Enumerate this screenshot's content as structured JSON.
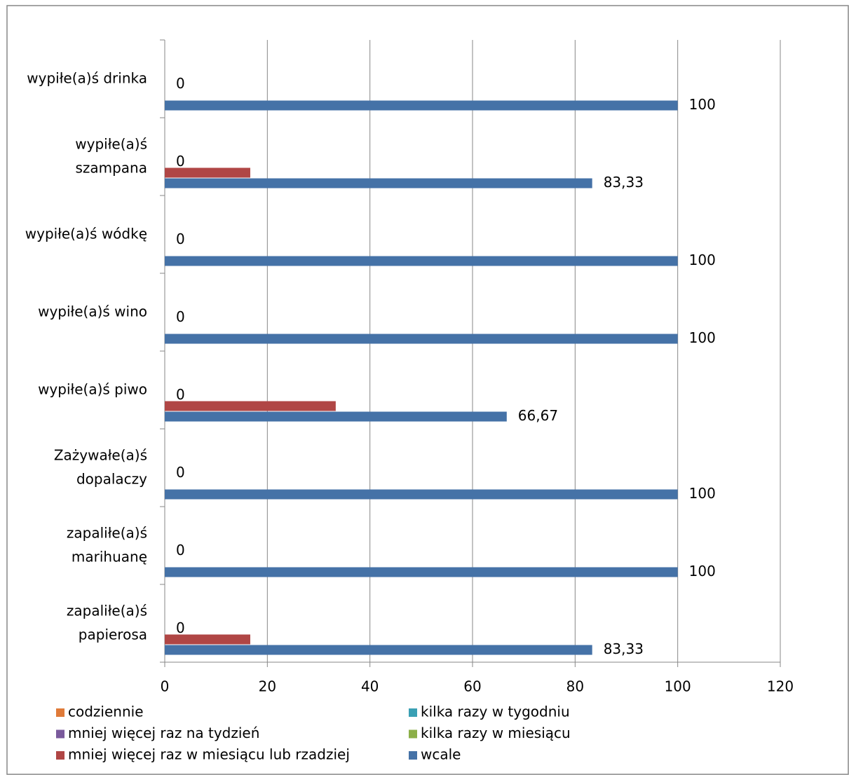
{
  "chart_data": {
    "type": "hbar",
    "categories": [
      "wypiłe(a)ś drinka",
      "wypiłe(a)ś szampana",
      "wypiłe(a)ś wódkę",
      "wypiłe(a)ś wino",
      "wypiłe(a)ś piwo",
      "Zażywałe(a)ś dopalaczy",
      "zapaliłe(a)ś marihuanę",
      "zapaliłe(a)ś papierosa"
    ],
    "series": [
      {
        "name": "codziennie",
        "color": "#e07b39",
        "values": [
          0,
          0,
          0,
          0,
          0,
          0,
          0,
          0
        ]
      },
      {
        "name": "kilka razy w tygodniu",
        "color": "#3aa0b4",
        "values": [
          0,
          0,
          0,
          0,
          0,
          0,
          0,
          0
        ]
      },
      {
        "name": "mniej więcej raz na tydzień",
        "color": "#7a5a9c",
        "values": [
          0,
          0,
          0,
          0,
          0,
          0,
          0,
          0
        ]
      },
      {
        "name": "kilka razy w miesiącu",
        "color": "#8caf48",
        "values": [
          0,
          0,
          0,
          0,
          0,
          0,
          0,
          0
        ],
        "show_labels": true
      },
      {
        "name": "mniej więcej raz w miesiącu lub rzadziej",
        "color": "#b04645",
        "values": [
          0,
          16.67,
          0,
          0,
          33.33,
          0,
          0,
          16.67
        ]
      },
      {
        "name": "wcale",
        "color": "#4572a7",
        "values": [
          100,
          83.33,
          100,
          100,
          66.67,
          100,
          100,
          83.33
        ],
        "value_labels": [
          "100",
          "83,33",
          "100",
          "100",
          "66,67",
          "100",
          "100",
          "83,33"
        ],
        "show_labels": true
      }
    ],
    "xlim": [
      0,
      120
    ],
    "xticks": [
      0,
      20,
      40,
      60,
      80,
      100,
      120
    ],
    "grid": true
  }
}
